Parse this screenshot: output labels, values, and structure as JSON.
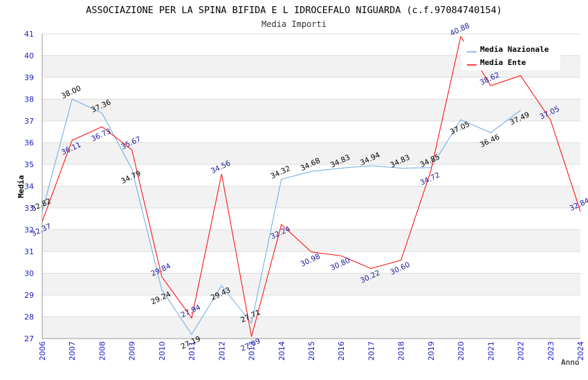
{
  "chart_data": {
    "type": "line",
    "title": "ASSOCIAZIONE PER LA SPINA BIFIDA E L IDROCEFALO NIGUARDA (c.f.97084740154)",
    "subtitle": "Media Importi",
    "xlabel": "Anno",
    "ylabel": "Media",
    "ylim": [
      27,
      41
    ],
    "yticks": [
      "27",
      "28",
      "29",
      "30",
      "31",
      "32",
      "33",
      "34",
      "35",
      "36",
      "37",
      "38",
      "39",
      "40",
      "41"
    ],
    "categories": [
      "2006",
      "2007",
      "2008",
      "2009",
      "2010",
      "2011",
      "2012",
      "2013",
      "2014",
      "2015",
      "2016",
      "2017",
      "2018",
      "2019",
      "2020",
      "2021",
      "2022",
      "2023",
      "2024"
    ],
    "legend_position": "top-right",
    "series": [
      {
        "name": "Media Nazionale",
        "color": "#6aa8e0",
        "label_color": "#000000",
        "values": [
          32.82,
          38.0,
          37.36,
          34.79,
          29.24,
          27.19,
          29.43,
          27.71,
          34.32,
          34.68,
          34.83,
          34.94,
          34.83,
          34.85,
          37.05,
          36.46,
          37.49,
          null,
          null
        ],
        "labels": [
          "32.82",
          "38.00",
          "37.36",
          "34.79",
          "29.24",
          "27.19",
          "29.43",
          "27.71",
          "34.32",
          "34.68",
          "34.83",
          "34.94",
          "34.83",
          "34.85",
          "37.05",
          "36.46",
          "37.49",
          null,
          null
        ]
      },
      {
        "name": "Media Ente",
        "color": "#ff0000",
        "label_color": "#1a1a99",
        "values": [
          32.37,
          36.11,
          36.73,
          35.67,
          29.84,
          27.94,
          34.56,
          27.09,
          32.24,
          30.98,
          30.8,
          30.22,
          30.6,
          34.72,
          40.88,
          38.62,
          39.08,
          37.05,
          32.84
        ],
        "labels": [
          "32.37",
          "36.11",
          "36.73",
          "35.67",
          "29.84",
          "27.94",
          "34.56",
          "27.09",
          "32.24",
          "30.98",
          "30.80",
          "30.22",
          "30.60",
          "34.72",
          "40.88",
          "38.62",
          null,
          "37.05",
          "32.84"
        ]
      }
    ]
  }
}
